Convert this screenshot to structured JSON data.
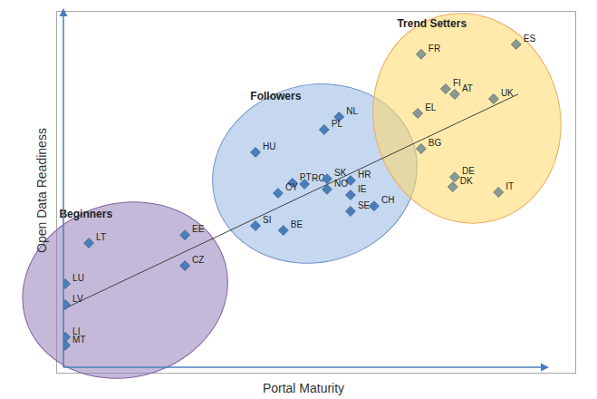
{
  "chart_data": {
    "type": "scatter",
    "xlabel": "Portal Maturity",
    "ylabel": "Open Data Readiness",
    "xlim": [
      0,
      100
    ],
    "ylim": [
      0,
      100
    ],
    "tick_labels": false,
    "grid": false,
    "series": [
      {
        "name": "Beginners",
        "color": "#4a7ebb",
        "marker": "diamond",
        "x": [
          5.3,
          25.3,
          25.3,
          0.4,
          0.4,
          0.4,
          0.4
        ],
        "y": [
          35.1,
          37.4,
          28.7,
          23.6,
          17.7,
          8.5,
          6.2
        ],
        "labels": [
          "LT",
          "EE",
          "CZ",
          "LU",
          "LV",
          "LI",
          "MT"
        ]
      },
      {
        "name": "Followers",
        "color": "#4a7ebb",
        "marker": "diamond",
        "x": [
          40.0,
          57.4,
          54.3,
          47.7,
          50.2,
          44.7,
          54.9,
          59.8,
          54.9,
          59.8,
          64.7,
          59.8,
          40.0,
          45.8
        ],
        "y": [
          60.8,
          70.8,
          67.2,
          52.1,
          51.8,
          49.2,
          53.3,
          52.8,
          50.3,
          48.7,
          45.6,
          44.1,
          40.0,
          38.7
        ],
        "labels": [
          "HU",
          "NL",
          "PL",
          "PT",
          "RO",
          "CY",
          "SK",
          "HR",
          "NO",
          "IE",
          "CH",
          "SE",
          "SI",
          "BE"
        ]
      },
      {
        "name": "Trend Setters",
        "color": "#8c9a8c",
        "marker": "diamond",
        "x": [
          74.5,
          94.3,
          79.6,
          81.5,
          89.6,
          73.8,
          74.5,
          81.5,
          81.1,
          90.6
        ],
        "y": [
          88.5,
          91.3,
          78.7,
          77.2,
          75.9,
          71.8,
          61.8,
          53.8,
          51.0,
          49.5
        ],
        "labels": [
          "FR",
          "ES",
          "FI",
          "AT",
          "UK",
          "EL",
          "BG",
          "DE",
          "DK",
          "IT"
        ]
      },
      {
        "type": "line",
        "color": "#404040",
        "line_style": "solid",
        "x": [
          0.4,
          94.7
        ],
        "y": [
          16.7,
          77.2
        ]
      }
    ]
  }
}
